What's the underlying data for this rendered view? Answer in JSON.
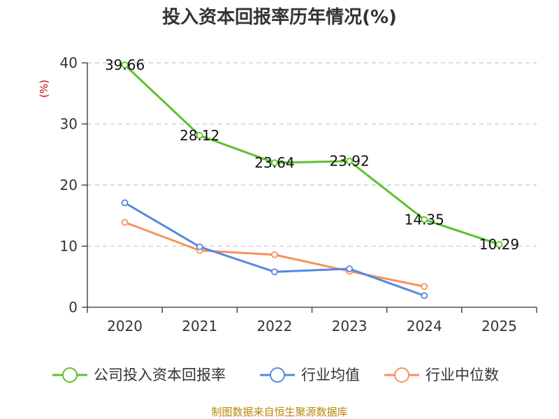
{
  "chart_data": {
    "type": "line",
    "title": "投入资本回报率历年情况(%)",
    "ylabel": "(%)",
    "xlabel": "",
    "categories": [
      "2020",
      "2021",
      "2022",
      "2023",
      "2024",
      "2025"
    ],
    "ylim": [
      0,
      40
    ],
    "yticks": [
      0,
      10,
      20,
      30,
      40
    ],
    "grid": true,
    "legend_position": "bottom",
    "series": [
      {
        "name": "公司投入资本回报率",
        "color": "#5cc22e",
        "values": [
          39.66,
          28.12,
          23.64,
          23.92,
          14.35,
          10.29
        ],
        "labels": [
          "39.66",
          "28.12",
          "23.64",
          "23.92",
          "14.35",
          "10.29"
        ]
      },
      {
        "name": "行业均值",
        "color": "#5588e0",
        "values": [
          17.1,
          9.9,
          5.8,
          6.3,
          1.9,
          null
        ]
      },
      {
        "name": "行业中位数",
        "color": "#f5925f",
        "values": [
          13.9,
          9.3,
          8.6,
          5.9,
          3.4,
          null
        ]
      }
    ]
  },
  "source": "制图数据来自恒生聚源数据库"
}
